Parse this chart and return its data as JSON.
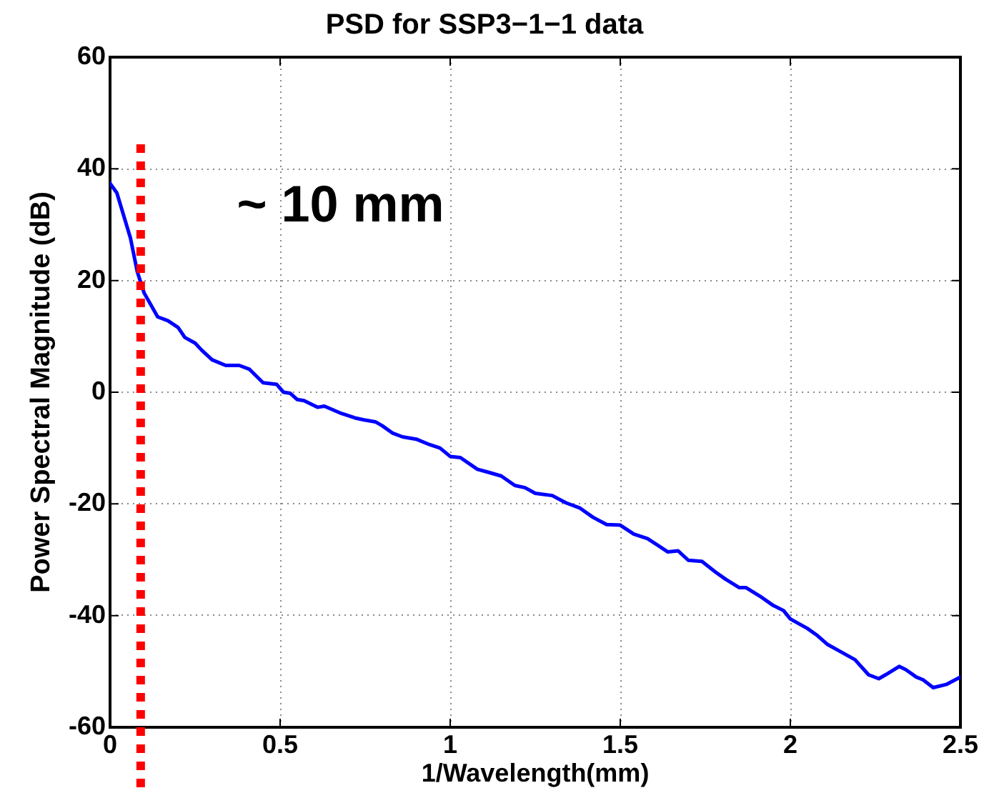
{
  "chart_data": {
    "type": "line",
    "title": "PSD for SSP3−1−1 data",
    "xlabel": "1/Wavelength(mm)",
    "ylabel": "Power Spectral Magnitude (dB)",
    "x": [
      0,
      0.02,
      0.06,
      0.08,
      0.1,
      0.14,
      0.17,
      0.2,
      0.22,
      0.25,
      0.27,
      0.3,
      0.34,
      0.38,
      0.41,
      0.45,
      0.49,
      0.51,
      0.53,
      0.55,
      0.57,
      0.61,
      0.63,
      0.68,
      0.72,
      0.75,
      0.78,
      0.8,
      0.83,
      0.86,
      0.9,
      0.94,
      0.97,
      1.0,
      1.03,
      1.08,
      1.11,
      1.15,
      1.19,
      1.22,
      1.25,
      1.3,
      1.34,
      1.38,
      1.42,
      1.46,
      1.5,
      1.54,
      1.58,
      1.64,
      1.67,
      1.7,
      1.74,
      1.78,
      1.81,
      1.85,
      1.87,
      1.91,
      1.95,
      1.98,
      2.0,
      2.05,
      2.08,
      2.11,
      2.14,
      2.19,
      2.23,
      2.26,
      2.28,
      2.32,
      2.34,
      2.37,
      2.39,
      2.42,
      2.46,
      2.5
    ],
    "series": [
      {
        "color": "#0000ff",
        "values": [
          37.4,
          35.7,
          27.6,
          21.6,
          17.8,
          13.5,
          12.8,
          11.6,
          9.8,
          8.8,
          7.5,
          5.8,
          4.8,
          4.8,
          4.1,
          1.7,
          1.4,
          0.0,
          -0.2,
          -1.3,
          -1.5,
          -2.7,
          -2.5,
          -3.8,
          -4.6,
          -5.0,
          -5.3,
          -6.0,
          -7.3,
          -8.0,
          -8.4,
          -9.4,
          -10.0,
          -11.5,
          -11.7,
          -13.8,
          -14.3,
          -15.0,
          -16.7,
          -17.1,
          -18.1,
          -18.5,
          -19.8,
          -20.7,
          -22.4,
          -23.7,
          -23.8,
          -25.4,
          -26.2,
          -28.6,
          -28.4,
          -30.1,
          -30.3,
          -32.2,
          -33.5,
          -35.0,
          -35.0,
          -36.5,
          -38.2,
          -39.1,
          -40.6,
          -42.3,
          -43.6,
          -45.2,
          -46.2,
          -47.9,
          -50.6,
          -51.3,
          -50.6,
          -49.1,
          -49.7,
          -51.0,
          -51.5,
          -52.9,
          -52.3,
          -51.0
        ]
      }
    ],
    "xlim": [
      0,
      2.5
    ],
    "xticks": [
      0,
      0.5,
      1,
      1.5,
      2,
      2.5
    ],
    "ylim": [
      -60,
      60
    ],
    "yticks": [
      -60,
      -40,
      -20,
      0,
      20,
      40,
      60
    ],
    "ref_lines": [
      {
        "axis": "x",
        "value": 0.09,
        "color": "#ff0000",
        "line_style": "dotted"
      }
    ],
    "annotations": [
      "~ 10 mm"
    ],
    "grid": true,
    "marker": "none"
  }
}
